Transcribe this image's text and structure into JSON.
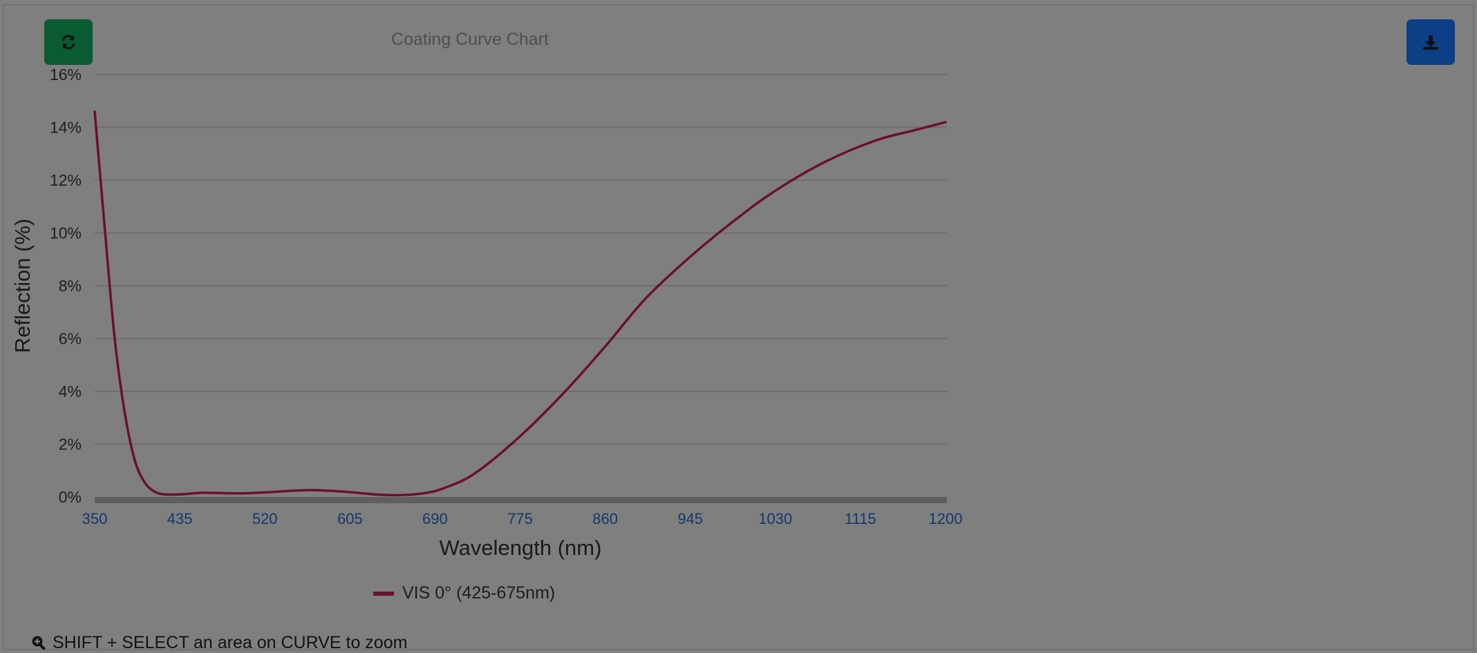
{
  "toolbar": {
    "refresh_icon": "refresh-icon",
    "download_icon": "download-icon"
  },
  "hint": {
    "icon": "zoom-in-icon",
    "text": "SHIFT + SELECT an area on CURVE to zoom"
  },
  "colors": {
    "background": "#7f7f7f",
    "refresh_button": "#0a5b32",
    "download_button": "#0d3f86",
    "series_line": "#6b0f2e",
    "gridline": "#6e6e6e",
    "x_tick_text": "#14386a"
  },
  "chart_data": {
    "type": "line",
    "title": "Coating Curve Chart",
    "xlabel": "Wavelength (nm)",
    "ylabel": "Reflection (%)",
    "xlim": [
      350,
      1200
    ],
    "ylim": [
      0,
      16
    ],
    "x_ticks": [
      "350",
      "435",
      "520",
      "605",
      "690",
      "775",
      "860",
      "945",
      "1030",
      "1115",
      "1200"
    ],
    "y_ticks": [
      "0%",
      "2%",
      "4%",
      "6%",
      "8%",
      "10%",
      "12%",
      "14%",
      "16%"
    ],
    "grid": true,
    "legend_position": "bottom",
    "series": [
      {
        "name": "VIS 0° (425-675nm)",
        "color": "#6b0f2e",
        "x": [
          350,
          360,
          370,
          380,
          390,
          400,
          410,
          420,
          435,
          460,
          500,
          550,
          570,
          600,
          630,
          655,
          680,
          700,
          730,
          775,
          820,
          860,
          900,
          945,
          990,
          1030,
          1080,
          1130,
          1170,
          1200
        ],
        "y": [
          14.6,
          10.2,
          6.0,
          3.2,
          1.4,
          0.55,
          0.2,
          0.1,
          0.1,
          0.16,
          0.14,
          0.24,
          0.26,
          0.2,
          0.1,
          0.07,
          0.15,
          0.35,
          0.9,
          2.3,
          4.0,
          5.7,
          7.5,
          9.1,
          10.5,
          11.6,
          12.7,
          13.5,
          13.9,
          14.2
        ]
      }
    ]
  }
}
